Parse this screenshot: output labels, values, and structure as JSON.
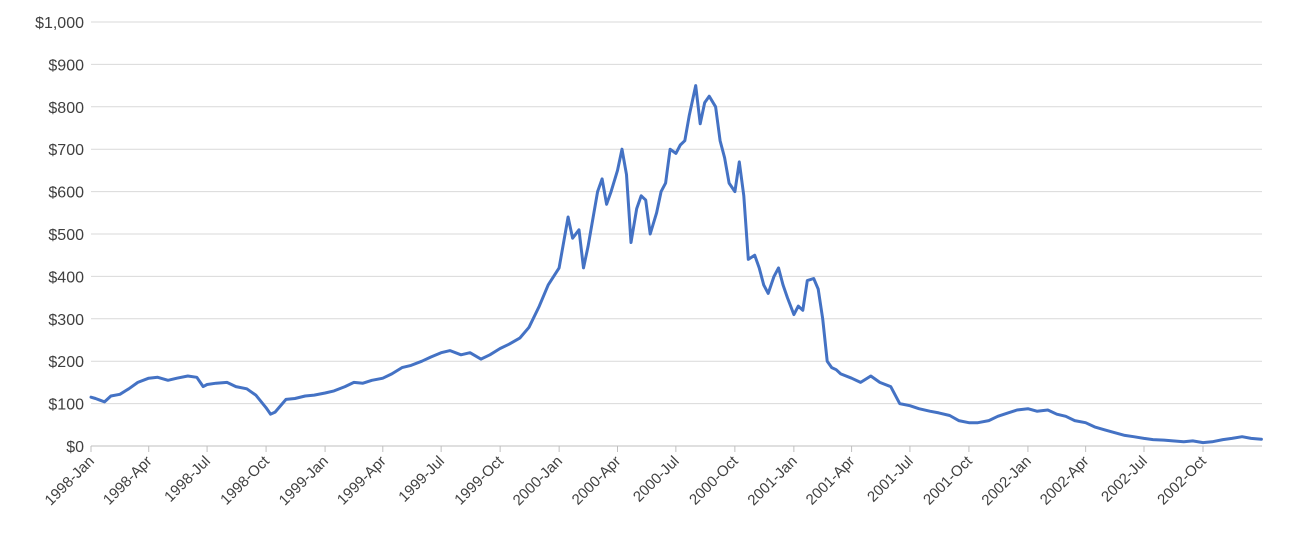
{
  "chart_data": {
    "type": "line",
    "title": "",
    "xlabel": "",
    "ylabel": "",
    "ylim": [
      0,
      1000
    ],
    "y_ticks": [
      0,
      100,
      200,
      300,
      400,
      500,
      600,
      700,
      800,
      900,
      1000
    ],
    "y_tick_labels": [
      "$0",
      "$100",
      "$200",
      "$300",
      "$400",
      "$500",
      "$600",
      "$700",
      "$800",
      "$900",
      "$1,000"
    ],
    "x_range": [
      "1998-01",
      "2002-12"
    ],
    "x_tick_labels": [
      "1998-Jan",
      "1998-Apr",
      "1998-Jul",
      "1998-Oct",
      "1999-Jan",
      "1999-Apr",
      "1999-Jul",
      "1999-Oct",
      "2000-Jan",
      "2000-Apr",
      "2000-Jul",
      "2000-Oct",
      "2001-Jan",
      "2001-Apr",
      "2001-Jul",
      "2001-Oct",
      "2002-Jan",
      "2002-Apr",
      "2002-Jul",
      "2002-Oct"
    ],
    "grid": true,
    "legend": "none",
    "color": "#4472c4",
    "series": [
      {
        "x": [
          "1998-01-01",
          "1998-01-08",
          "1998-01-15",
          "1998-01-22",
          "1998-02-01",
          "1998-02-15",
          "1998-03-01",
          "1998-03-15",
          "1998-04-01",
          "1998-04-15",
          "1998-05-01",
          "1998-05-15",
          "1998-06-01",
          "1998-06-15",
          "1998-06-25",
          "1998-07-01",
          "1998-07-15",
          "1998-08-01",
          "1998-08-15",
          "1998-09-01",
          "1998-09-15",
          "1998-10-01",
          "1998-10-08",
          "1998-10-15",
          "1998-11-01",
          "1998-11-15",
          "1998-12-01",
          "1998-12-15",
          "1999-01-01",
          "1999-01-15",
          "1999-02-01",
          "1999-02-15",
          "1999-03-01",
          "1999-03-15",
          "1999-04-01",
          "1999-04-15",
          "1999-05-01",
          "1999-05-15",
          "1999-06-01",
          "1999-06-15",
          "1999-07-01",
          "1999-07-15",
          "1999-08-01",
          "1999-08-15",
          "1999-09-01",
          "1999-09-15",
          "1999-10-01",
          "1999-10-15",
          "1999-11-01",
          "1999-11-15",
          "1999-12-01",
          "1999-12-15",
          "2000-01-01",
          "2000-01-08",
          "2000-01-15",
          "2000-01-22",
          "2000-02-01",
          "2000-02-08",
          "2000-02-15",
          "2000-03-01",
          "2000-03-08",
          "2000-03-15",
          "2000-03-22",
          "2000-04-01",
          "2000-04-08",
          "2000-04-15",
          "2000-04-22",
          "2000-05-01",
          "2000-05-08",
          "2000-05-15",
          "2000-05-22",
          "2000-06-01",
          "2000-06-08",
          "2000-06-15",
          "2000-06-22",
          "2000-07-01",
          "2000-07-08",
          "2000-07-15",
          "2000-07-22",
          "2000-08-01",
          "2000-08-08",
          "2000-08-15",
          "2000-08-22",
          "2000-09-01",
          "2000-09-08",
          "2000-09-15",
          "2000-09-22",
          "2000-10-01",
          "2000-10-08",
          "2000-10-15",
          "2000-10-22",
          "2000-11-01",
          "2000-11-08",
          "2000-11-15",
          "2000-11-22",
          "2000-12-01",
          "2000-12-08",
          "2000-12-15",
          "2000-12-22",
          "2001-01-01",
          "2001-01-08",
          "2001-01-15",
          "2001-01-22",
          "2001-02-01",
          "2001-02-08",
          "2001-02-15",
          "2001-02-22",
          "2001-03-01",
          "2001-03-08",
          "2001-03-15",
          "2001-04-01",
          "2001-04-15",
          "2001-05-01",
          "2001-05-15",
          "2001-06-01",
          "2001-06-15",
          "2001-07-01",
          "2001-07-15",
          "2001-08-01",
          "2001-08-15",
          "2001-09-01",
          "2001-09-15",
          "2001-10-01",
          "2001-10-15",
          "2001-11-01",
          "2001-11-15",
          "2001-12-01",
          "2001-12-15",
          "2002-01-01",
          "2002-01-15",
          "2002-02-01",
          "2002-02-15",
          "2002-03-01",
          "2002-03-15",
          "2002-04-01",
          "2002-04-15",
          "2002-05-01",
          "2002-05-15",
          "2002-06-01",
          "2002-06-15",
          "2002-07-01",
          "2002-07-15",
          "2002-08-01",
          "2002-08-15",
          "2002-09-01",
          "2002-09-15",
          "2002-10-01",
          "2002-10-15",
          "2002-11-01",
          "2002-11-15",
          "2002-12-01",
          "2002-12-15",
          "2002-12-31"
        ],
        "values": [
          115,
          112,
          108,
          104,
          118,
          122,
          135,
          150,
          160,
          162,
          155,
          160,
          165,
          162,
          140,
          145,
          148,
          150,
          140,
          135,
          120,
          90,
          75,
          80,
          110,
          112,
          118,
          120,
          125,
          130,
          140,
          150,
          148,
          155,
          160,
          170,
          185,
          190,
          200,
          210,
          220,
          225,
          215,
          220,
          205,
          215,
          230,
          240,
          255,
          280,
          330,
          380,
          420,
          480,
          540,
          490,
          510,
          420,
          470,
          600,
          630,
          570,
          600,
          650,
          700,
          640,
          480,
          560,
          590,
          580,
          500,
          550,
          600,
          620,
          700,
          690,
          710,
          720,
          780,
          850,
          760,
          810,
          825,
          800,
          720,
          680,
          620,
          600,
          670,
          590,
          440,
          450,
          420,
          380,
          360,
          400,
          420,
          380,
          350,
          310,
          330,
          320,
          390,
          395,
          370,
          300,
          200,
          185,
          180,
          170,
          160,
          150,
          165,
          150,
          140,
          100,
          95,
          88,
          82,
          78,
          72,
          60,
          55,
          55,
          60,
          70,
          78,
          85,
          88,
          82,
          85,
          75,
          70,
          60,
          55,
          45,
          38,
          32,
          25,
          22,
          18,
          15,
          14,
          12,
          10,
          12,
          8,
          10,
          15,
          18,
          22,
          18,
          16
        ]
      }
    ]
  }
}
